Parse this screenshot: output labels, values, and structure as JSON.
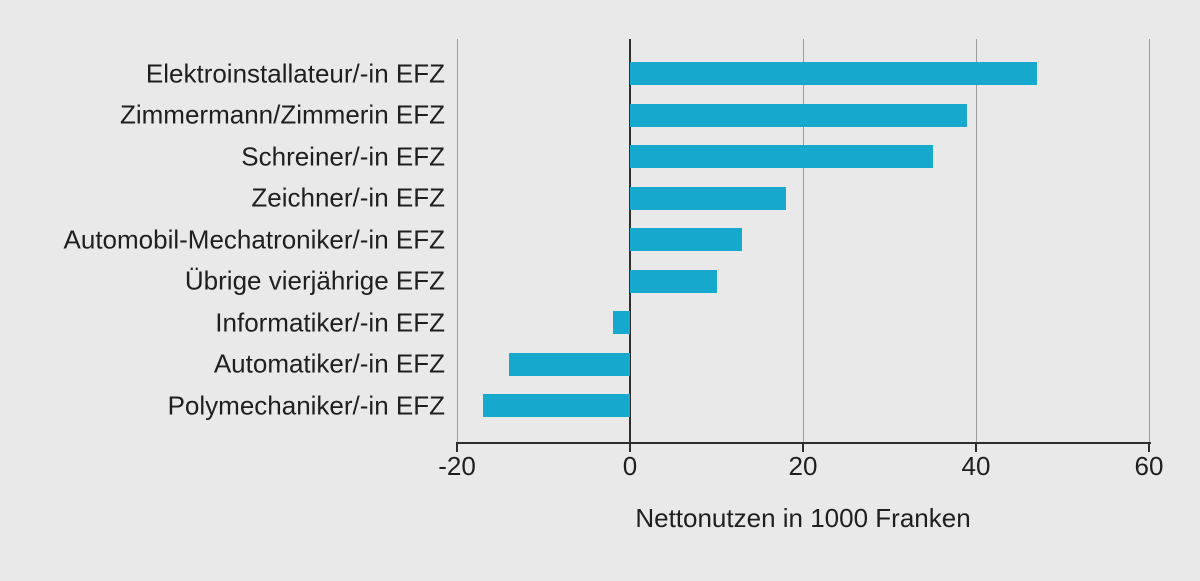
{
  "chart_data": {
    "type": "bar",
    "orientation": "horizontal",
    "title": "",
    "xlabel": "Nettonutzen in 1000 Franken",
    "ylabel": "",
    "xlim": [
      -20,
      60
    ],
    "xticks": [
      -20,
      0,
      20,
      40,
      60
    ],
    "xtick_labels": [
      "-20",
      "0",
      "20",
      "40",
      "60"
    ],
    "grid": "vertical-gridlines-at-ticks",
    "legend": "none",
    "categories": [
      "Elektroinstallateur/-in EFZ",
      "Zimmermann/Zimmerin EFZ",
      "Schreiner/-in EFZ",
      "Zeichner/-in EFZ",
      "Automobil-Mechatroniker/-in EFZ",
      "Übrige vierjährige EFZ",
      "Informatiker/-in EFZ",
      "Automatiker/-in EFZ",
      "Polymechaniker/-in EFZ"
    ],
    "values": [
      47,
      39,
      35,
      18,
      13,
      10,
      -2,
      -14,
      -17
    ],
    "colors": {
      "bar": "#17a9cd",
      "background": "#e9e9e9",
      "gridline": "#9d9d9d",
      "axis": "#2e2e2e",
      "text": "#1f1f1f"
    }
  }
}
